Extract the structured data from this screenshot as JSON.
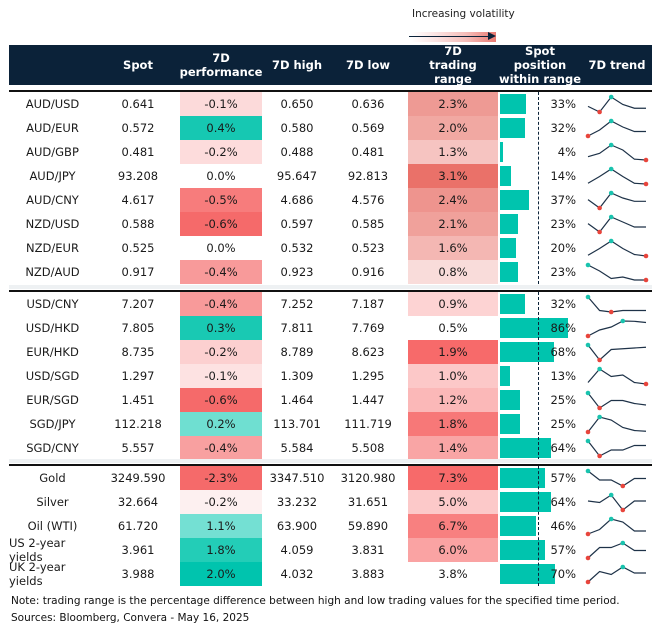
{
  "legend": {
    "label": "Increasing volatility"
  },
  "header": {
    "columns": [
      "",
      "Spot",
      "7D performance",
      "7D high",
      "7D low",
      "7D trading range",
      "Spot position within range",
      "7D trend"
    ]
  },
  "colors": {
    "header_bg": "#0b2239",
    "bar": "#00c4ae",
    "trend_line": "#1e3248",
    "trend_max": "#19c3ae",
    "trend_min": "#e8453c"
  },
  "groups": [
    {
      "rows": [
        {
          "name": "AUD/USD",
          "spot": "0.641",
          "perf": "-0.1%",
          "perf_color": "#fcdada",
          "high": "0.650",
          "low": "0.636",
          "range": "2.3%",
          "range_color": "#ee9a94",
          "position": 33,
          "trend": [
            5,
            2,
            10,
            6,
            4,
            4
          ]
        },
        {
          "name": "AUD/EUR",
          "spot": "0.572",
          "perf": "0.4%",
          "perf_color": "#16c8b2",
          "high": "0.580",
          "low": "0.569",
          "range": "2.0%",
          "range_color": "#f1a8a2",
          "position": 32,
          "trend": [
            0,
            4,
            10,
            6,
            3,
            3
          ]
        },
        {
          "name": "AUD/GBP",
          "spot": "0.481",
          "perf": "-0.2%",
          "perf_color": "#fddcdc",
          "high": "0.488",
          "low": "0.481",
          "range": "1.3%",
          "range_color": "#f6c4c1",
          "position": 4,
          "trend": [
            3,
            5,
            10,
            7,
            1.5,
            1
          ]
        },
        {
          "name": "AUD/JPY",
          "spot": "93.208",
          "perf": "0.0%",
          "perf_color": "#ffffff",
          "high": "95.647",
          "low": "92.813",
          "range": "3.1%",
          "range_color": "#ea7169",
          "position": 14,
          "trend": [
            0.5,
            5,
            10,
            5,
            0.5,
            0
          ]
        },
        {
          "name": "AUD/CNY",
          "spot": "4.617",
          "perf": "-0.5%",
          "perf_color": "#f77c7c",
          "high": "4.686",
          "low": "4.576",
          "range": "2.4%",
          "range_color": "#ee948e",
          "position": 37,
          "trend": [
            6,
            1,
            10,
            7,
            5,
            5
          ]
        },
        {
          "name": "NZD/USD",
          "spot": "0.588",
          "perf": "-0.6%",
          "perf_color": "#f56a6a",
          "high": "0.597",
          "low": "0.585",
          "range": "2.1%",
          "range_color": "#f0a19b",
          "position": 23,
          "trend": [
            6,
            1,
            10,
            7,
            4,
            4
          ]
        },
        {
          "name": "NZD/EUR",
          "spot": "0.525",
          "perf": "0.0%",
          "perf_color": "#ffffff",
          "high": "0.532",
          "low": "0.523",
          "range": "1.6%",
          "range_color": "#f4b7b3",
          "position": 20,
          "trend": [
            0.5,
            5,
            10,
            5,
            1,
            0
          ]
        },
        {
          "name": "NZD/AUD",
          "spot": "0.917",
          "perf": "-0.4%",
          "perf_color": "#f89a9a",
          "high": "0.923",
          "low": "0.916",
          "range": "0.8%",
          "range_color": "#f9dcda",
          "position": 23,
          "trend": [
            10,
            6,
            1,
            2,
            0,
            0
          ]
        }
      ]
    },
    {
      "rows": [
        {
          "name": "USD/CNY",
          "spot": "7.207",
          "perf": "-0.4%",
          "perf_color": "#f89a9a",
          "high": "7.252",
          "low": "7.187",
          "range": "0.9%",
          "range_color": "#fdd3d3",
          "position": 32,
          "trend": [
            10,
            1,
            0,
            1,
            1,
            1
          ]
        },
        {
          "name": "USD/HKD",
          "spot": "7.805",
          "perf": "0.3%",
          "perf_color": "#19c9b3",
          "high": "7.811",
          "low": "7.769",
          "range": "0.5%",
          "range_color": "#ffffff",
          "position": 86,
          "trend": [
            0,
            4,
            6,
            10,
            9.8,
            9
          ]
        },
        {
          "name": "EUR/HKD",
          "spot": "8.735",
          "perf": "-0.2%",
          "perf_color": "#fcd0d0",
          "high": "8.789",
          "low": "8.623",
          "range": "1.9%",
          "range_color": "#f76a6a",
          "position": 68,
          "trend": [
            10,
            0,
            7,
            7.5,
            8,
            8.5
          ]
        },
        {
          "name": "USD/SGD",
          "spot": "1.297",
          "perf": "-0.1%",
          "perf_color": "#fde2e2",
          "high": "1.309",
          "low": "1.295",
          "range": "1.0%",
          "range_color": "#fcc8c8",
          "position": 13,
          "trend": [
            1,
            10,
            5,
            6,
            1,
            0
          ]
        },
        {
          "name": "EUR/SGD",
          "spot": "1.451",
          "perf": "-0.6%",
          "perf_color": "#f56a6a",
          "high": "1.464",
          "low": "1.447",
          "range": "1.2%",
          "range_color": "#fbb8b8",
          "position": 25,
          "trend": [
            10,
            0,
            5,
            5,
            3,
            2
          ]
        },
        {
          "name": "SGD/JPY",
          "spot": "112.218",
          "perf": "0.2%",
          "perf_color": "#6fdfd1",
          "high": "113.701",
          "low": "111.719",
          "range": "1.8%",
          "range_color": "#f77878",
          "position": 25,
          "trend": [
            0,
            10,
            8,
            3,
            1,
            0.5
          ]
        },
        {
          "name": "SGD/CNY",
          "spot": "5.557",
          "perf": "-0.4%",
          "perf_color": "#f8a0a0",
          "high": "5.584",
          "low": "5.508",
          "range": "1.4%",
          "range_color": "#f9a5a5",
          "position": 64,
          "trend": [
            10,
            0,
            4,
            4,
            7,
            7
          ]
        }
      ]
    },
    {
      "rows": [
        {
          "name": "Gold",
          "spot": "3249.590",
          "perf": "-2.3%",
          "perf_color": "#f56a6a",
          "high": "3347.510",
          "low": "3120.980",
          "range": "7.3%",
          "range_color": "#f76a6a",
          "position": 57,
          "trend": [
            10,
            4,
            4,
            0,
            5,
            5
          ]
        },
        {
          "name": "Silver",
          "spot": "32.664",
          "perf": "-0.2%",
          "perf_color": "#fdf0f0",
          "high": "33.232",
          "low": "31.651",
          "range": "5.0%",
          "range_color": "#fcc9c9",
          "position": 64,
          "trend": [
            6,
            5,
            10,
            0,
            6,
            6
          ]
        },
        {
          "name": "Oil (WTI)",
          "spot": "61.720",
          "perf": "1.1%",
          "perf_color": "#74e0d3",
          "high": "63.900",
          "low": "59.890",
          "range": "6.7%",
          "range_color": "#f88080",
          "position": 46,
          "trend": [
            0,
            3,
            10,
            8,
            2,
            2
          ]
        },
        {
          "name": "US 2-year yields",
          "spot": "3.961",
          "perf": "1.8%",
          "perf_color": "#23cdb7",
          "high": "4.059",
          "low": "3.831",
          "range": "6.0%",
          "range_color": "#faa3a3",
          "position": 57,
          "trend": [
            0,
            7,
            7,
            10,
            5,
            5
          ]
        },
        {
          "name": "UK 2-year yields",
          "spot": "3.988",
          "perf": "2.0%",
          "perf_color": "#00c4ae",
          "high": "4.032",
          "low": "3.883",
          "range": "3.8%",
          "range_color": "#ffffff",
          "position": 70,
          "trend": [
            0,
            7,
            5,
            10,
            6,
            6
          ]
        }
      ]
    }
  ],
  "notes": {
    "note": "Note: trading range is the percentage difference between high and low trading values for the specified time period.",
    "sources": "Sources: Bloomberg, Convera - May 16, 2025"
  }
}
